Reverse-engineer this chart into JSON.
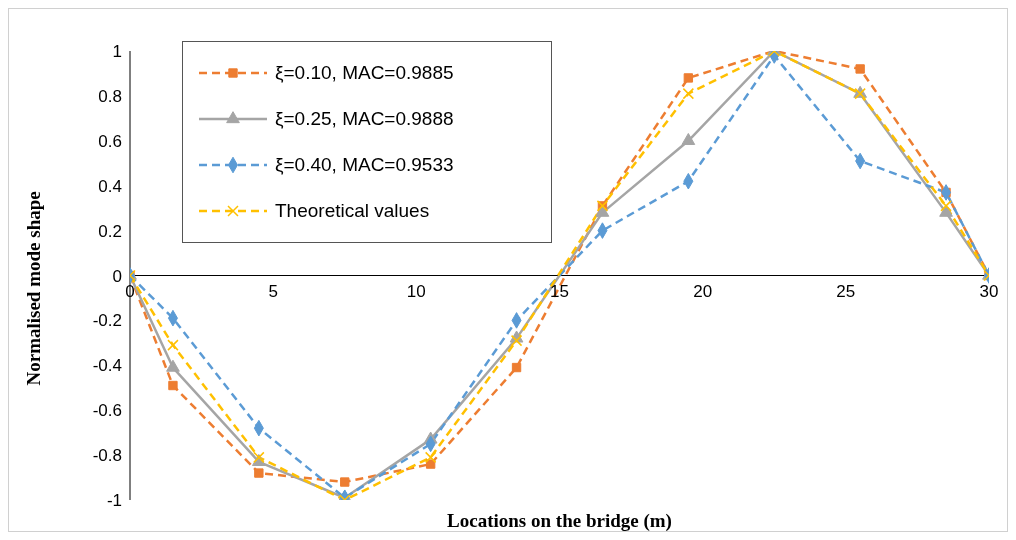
{
  "chart_data": {
    "type": "line",
    "xlabel": "Locations on the bridge (m)",
    "ylabel": "Normalised mode shape",
    "x": [
      0,
      1.5,
      4.5,
      7.5,
      10.5,
      13.5,
      16.5,
      19.5,
      22.5,
      25.5,
      28.5,
      30
    ],
    "series": [
      {
        "name": "ξ=0.10, MAC=0.9885",
        "color": "#ed7d31",
        "marker": "square",
        "line_style": "dashed",
        "values": [
          0,
          -0.49,
          -0.88,
          -0.92,
          -0.84,
          -0.41,
          0.31,
          0.88,
          1,
          0.92,
          0.37,
          0
        ]
      },
      {
        "name": "ξ=0.25, MAC=0.9888",
        "color": "#a5a5a5",
        "marker": "triangle",
        "line_style": "solid",
        "values": [
          0,
          -0.41,
          -0.83,
          -0.99,
          -0.73,
          -0.28,
          0.28,
          0.6,
          1,
          0.81,
          0.28,
          0
        ]
      },
      {
        "name": "ξ=0.40, MAC=0.9533",
        "color": "#5b9bd5",
        "marker": "diamond",
        "line_style": "dashed",
        "values": [
          0,
          -0.19,
          -0.68,
          -0.99,
          -0.75,
          -0.2,
          0.2,
          0.42,
          0.98,
          0.51,
          0.37,
          0
        ]
      },
      {
        "name": "Theoretical values",
        "color": "#ffc000",
        "marker": "cross",
        "line_style": "dashed",
        "values": [
          0,
          -0.31,
          -0.81,
          -1,
          -0.81,
          -0.29,
          0.31,
          0.81,
          1,
          0.81,
          0.31,
          0
        ]
      }
    ],
    "xlim": [
      0,
      30
    ],
    "xticks": [
      0,
      5,
      10,
      15,
      20,
      25,
      30
    ],
    "ylim": [
      -1,
      1
    ],
    "yticks": [
      -1,
      -0.8,
      -0.6,
      -0.4,
      -0.2,
      0,
      0.2,
      0.4,
      0.6,
      0.8,
      1
    ],
    "grid": false,
    "legend": "top left"
  }
}
